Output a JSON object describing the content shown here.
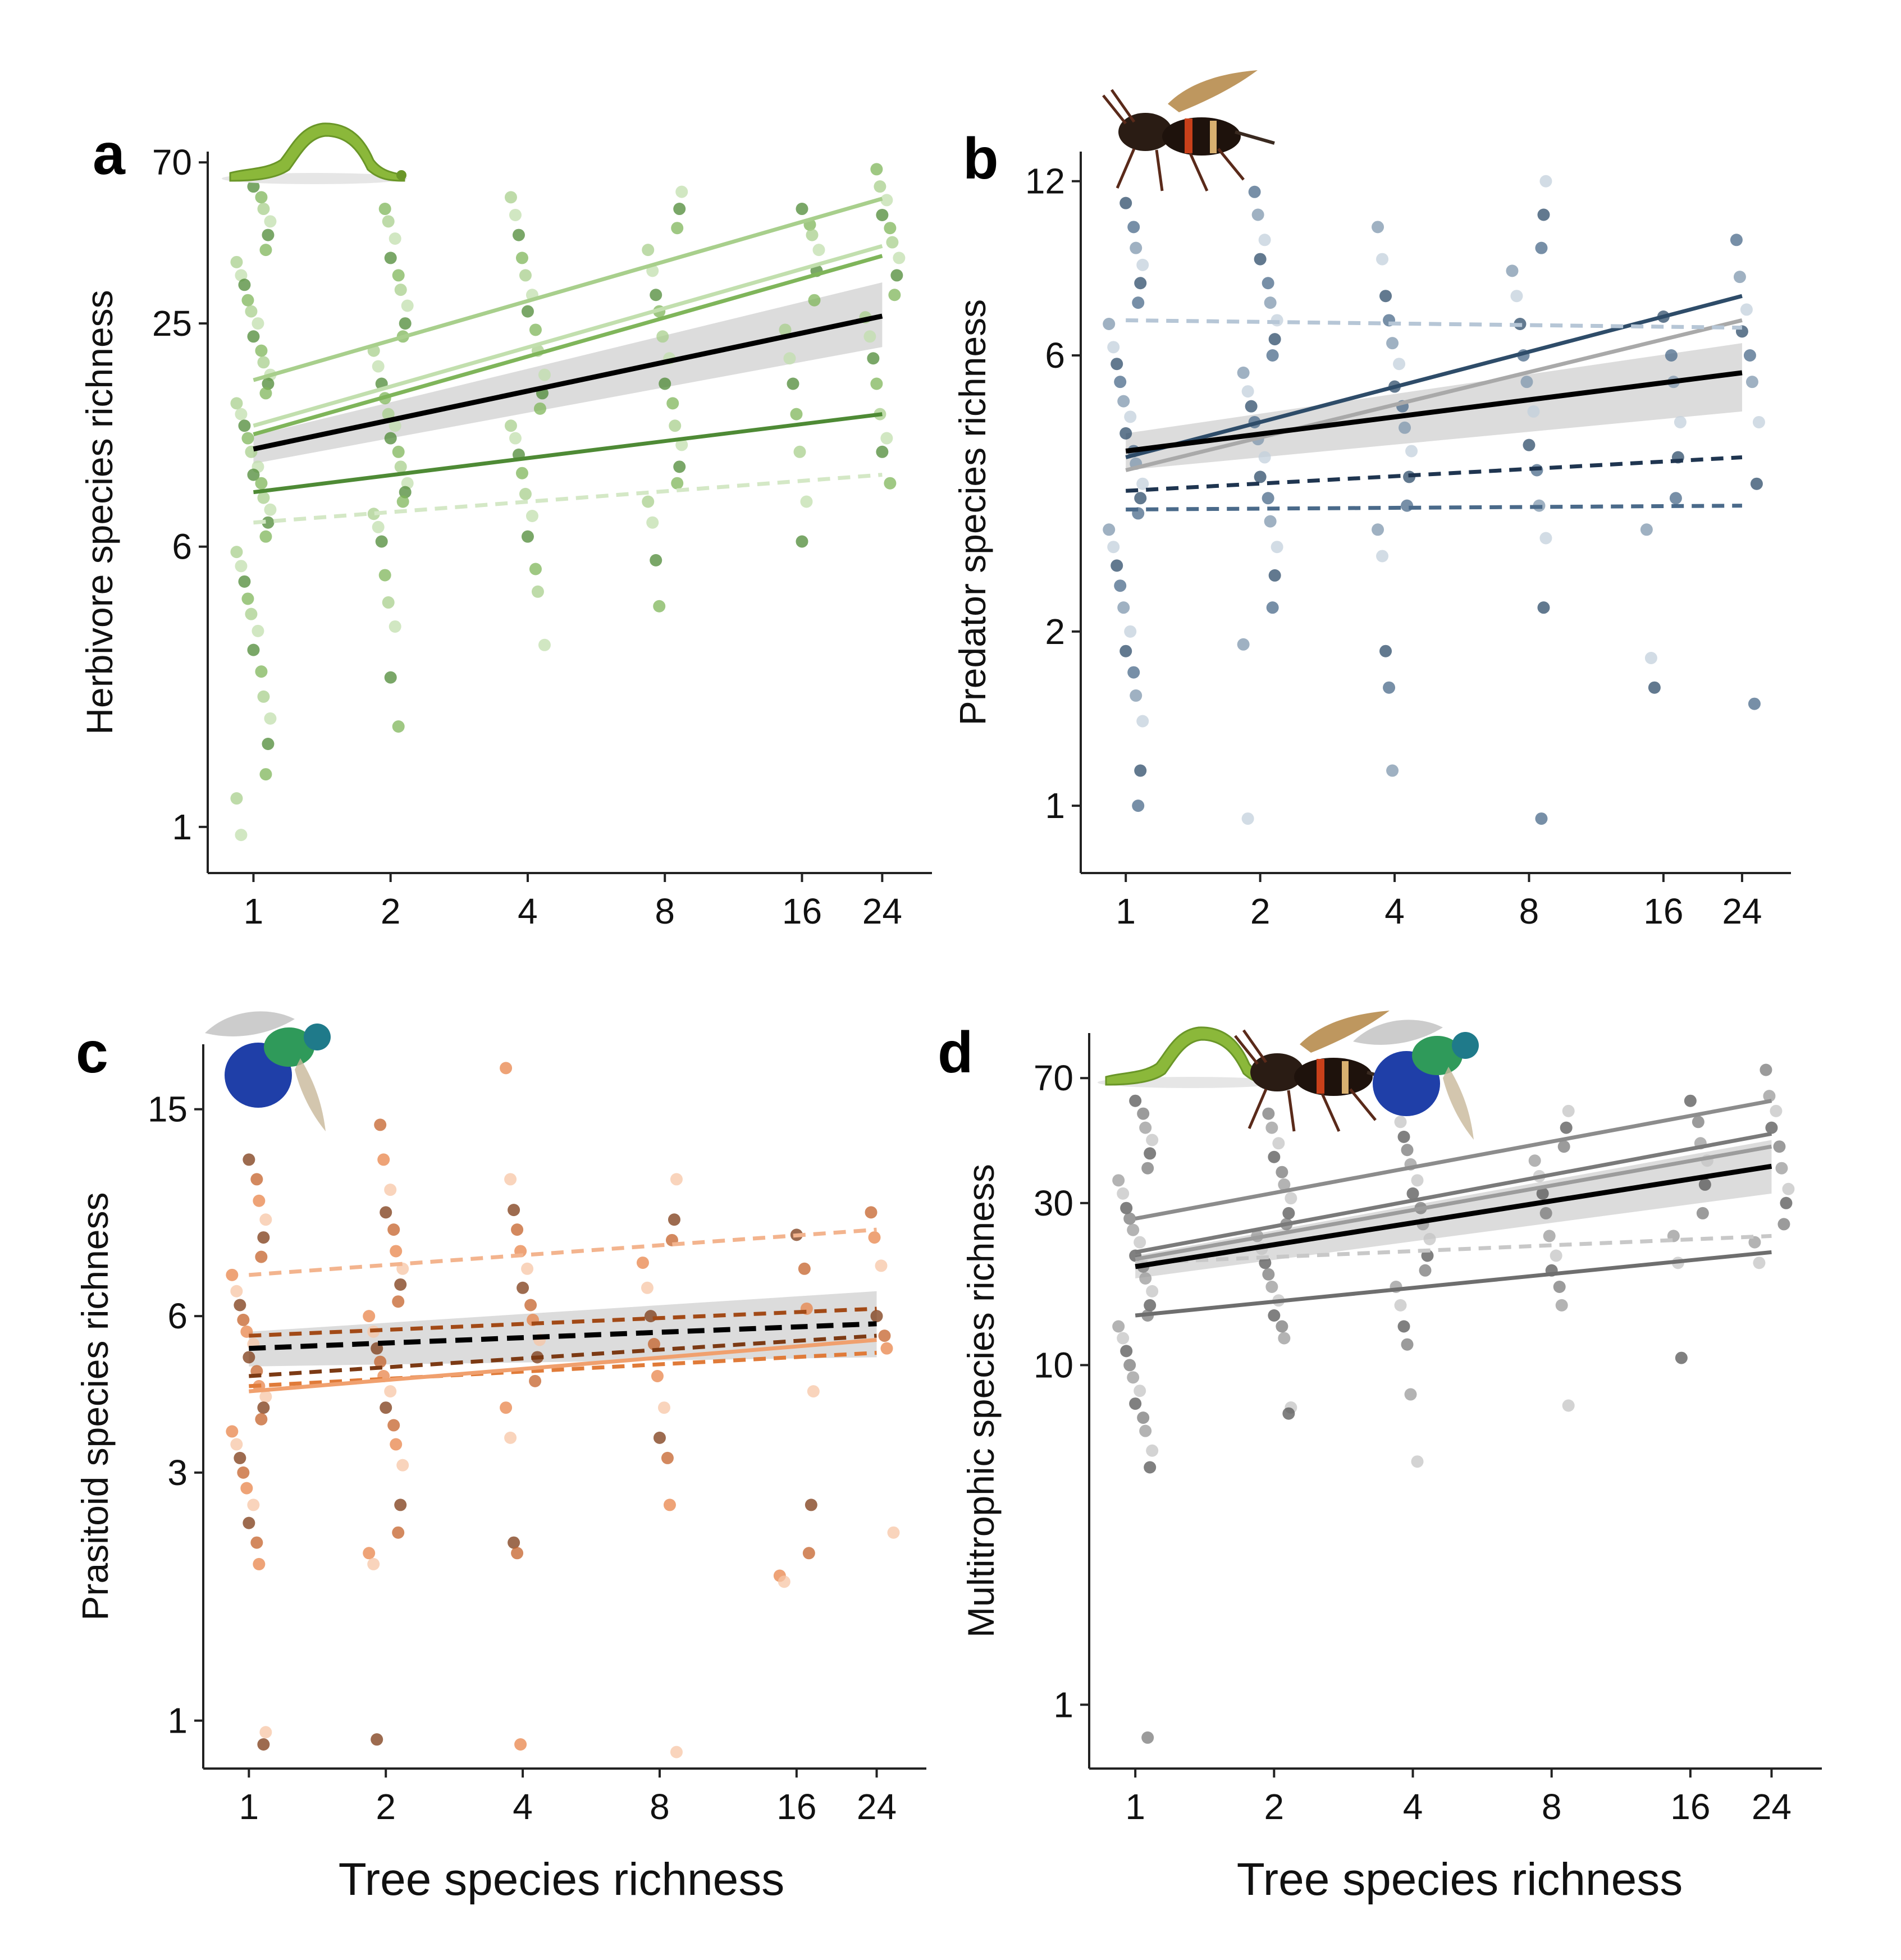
{
  "figure": {
    "xlabel": "Tree species richness"
  },
  "chart_data": [
    {
      "type": "scatter",
      "panel": "a",
      "ylabel": "Herbivore species richness",
      "x_ticks": [
        1,
        2,
        4,
        8,
        16,
        24
      ],
      "y_ticks": [
        1,
        6,
        25,
        70
      ],
      "x_scale": "log2",
      "y_scale": "log",
      "xlim": [
        0.84,
        30
      ],
      "ylim": [
        0.8,
        75
      ],
      "insect_icons": [
        "caterpillar-icon"
      ],
      "mean_line": {
        "color": "#000000",
        "style": "solid",
        "x": [
          1,
          24
        ],
        "y": [
          11.2,
          26.2
        ],
        "band_upper": [
          12.2,
          32.5
        ],
        "band_lower": [
          10.2,
          21.5
        ],
        "band_color": "#dcdcdc"
      },
      "series": [
        {
          "color": "#a8cf8c",
          "style": "solid",
          "x": [
            1,
            24
          ],
          "y": [
            17.4,
            55.5
          ]
        },
        {
          "color": "#c2dfae",
          "style": "solid",
          "x": [
            1,
            24
          ],
          "y": [
            13.0,
            41.0
          ]
        },
        {
          "color": "#7fb55a",
          "style": "solid",
          "x": [
            1,
            24
          ],
          "y": [
            12.3,
            38.5
          ]
        },
        {
          "color": "#4e8a35",
          "style": "solid",
          "x": [
            1,
            24
          ],
          "y": [
            8.5,
            14.0
          ]
        },
        {
          "color": "#d4e8c6",
          "style": "dashed",
          "x": [
            1,
            24
          ],
          "y": [
            7.0,
            9.5
          ]
        }
      ],
      "points": {
        "colors": [
          "#4e8a35",
          "#7fb55a",
          "#a8cf8c",
          "#c2dfae"
        ],
        "groups": [
          {
            "x": 1,
            "y": [
              60,
              56,
              52,
              48,
              44,
              40,
              37,
              34,
              32,
              29,
              27,
              25,
              23,
              21,
              19.5,
              18,
              17,
              16,
              15,
              14,
              13,
              12,
              11,
              10,
              9.5,
              9,
              8.2,
              7.6,
              7,
              6.4,
              5.8,
              5.3,
              4.8,
              4.3,
              3.9,
              3.5,
              3.1,
              2.7,
              2.3,
              2.0,
              1.7,
              1.4,
              1.2,
              0.95
            ]
          },
          {
            "x": 2,
            "y": [
              52,
              48,
              43,
              38,
              34,
              31,
              28,
              25,
              23,
              21,
              19,
              17,
              15.5,
              14,
              13,
              12,
              11,
              10,
              9,
              8.5,
              8,
              7.4,
              6.8,
              6.2,
              5.0,
              4.2,
              3.6,
              2.6,
              1.9
            ]
          },
          {
            "x": 4,
            "y": [
              56,
              50,
              44,
              38,
              34,
              30,
              27,
              24,
              21,
              18,
              16,
              14.5,
              13,
              12,
              10.8,
              9.6,
              8.4,
              7.3,
              6.4,
              5.2,
              4.5,
              3.2
            ]
          },
          {
            "x": 8,
            "y": [
              58,
              52,
              46,
              40,
              35,
              30,
              27,
              23,
              20,
              17,
              15,
              13,
              11.5,
              10,
              9,
              8,
              7,
              5.5,
              4.1
            ]
          },
          {
            "x": 16,
            "y": [
              52,
              47,
              44,
              40,
              35,
              29,
              24,
              20,
              17,
              14,
              11,
              8,
              6.2
            ]
          },
          {
            "x": 24,
            "y": [
              67,
              60,
              55,
              50,
              46,
              42,
              38,
              34,
              30,
              26,
              23,
              20,
              17,
              14,
              12,
              11,
              9
            ]
          }
        ]
      }
    },
    {
      "type": "scatter",
      "panel": "b",
      "ylabel": "Predator species richness",
      "x_ticks": [
        1,
        2,
        4,
        8,
        16,
        24
      ],
      "y_ticks": [
        1,
        2,
        6,
        12
      ],
      "x_scale": "log2",
      "y_scale": "log",
      "xlim": [
        0.84,
        30
      ],
      "ylim": [
        0.8,
        13.5
      ],
      "insect_icons": [
        "wasp-icon"
      ],
      "mean_line": {
        "color": "#000000",
        "style": "solid",
        "x": [
          1,
          24
        ],
        "y": [
          4.1,
          5.6
        ],
        "band_upper": [
          4.4,
          6.3
        ],
        "band_lower": [
          3.8,
          4.8
        ],
        "band_color": "#dcdcdc"
      },
      "series": [
        {
          "color": "#2e4c69",
          "style": "solid",
          "x": [
            1,
            24
          ],
          "y": [
            4.0,
            7.6
          ]
        },
        {
          "color": "#a9a9a9",
          "style": "solid",
          "x": [
            1,
            24
          ],
          "y": [
            3.8,
            6.9
          ]
        },
        {
          "color": "#b6c6d6",
          "style": "dashed",
          "x": [
            1,
            24
          ],
          "y": [
            6.9,
            6.7
          ]
        },
        {
          "color": "#1f3550",
          "style": "dashed",
          "x": [
            1,
            24
          ],
          "y": [
            3.5,
            4.0
          ]
        },
        {
          "color": "#4a6a8a",
          "style": "dashed",
          "x": [
            1,
            24
          ],
          "y": [
            3.25,
            3.3
          ]
        }
      ],
      "points": {
        "colors": [
          "#2e4c69",
          "#4a6a8a",
          "#7f97ae",
          "#c3d0dc"
        ],
        "groups": [
          {
            "x": 1,
            "y": [
              11,
              10,
              9.2,
              8.6,
              8,
              7.4,
              6.8,
              6.2,
              5.8,
              5.4,
              5.0,
              4.7,
              4.4,
              4.1,
              3.9,
              3.6,
              3.4,
              3.2,
              3.0,
              2.8,
              2.6,
              2.4,
              2.2,
              2.0,
              1.85,
              1.7,
              1.55,
              1.4,
              1.15,
              1.0
            ]
          },
          {
            "x": 2,
            "y": [
              11.5,
              10.5,
              9.5,
              8.8,
              8,
              7.4,
              6.9,
              6.4,
              6.0,
              5.6,
              5.2,
              4.9,
              4.6,
              4.3,
              4.0,
              3.7,
              3.4,
              3.1,
              2.8,
              2.5,
              2.2,
              1.9,
              0.95
            ]
          },
          {
            "x": 4,
            "y": [
              10,
              8.8,
              7.6,
              6.9,
              6.3,
              5.8,
              5.3,
              4.9,
              4.5,
              4.1,
              3.7,
              3.3,
              3.0,
              2.7,
              1.85,
              1.6,
              1.15
            ]
          },
          {
            "x": 8,
            "y": [
              12,
              10.5,
              9.2,
              8.4,
              7.6,
              6.8,
              6.0,
              5.4,
              4.8,
              4.2,
              3.8,
              3.3,
              2.9,
              2.2,
              0.95
            ]
          },
          {
            "x": 16,
            "y": [
              7,
              6.0,
              5.4,
              4.6,
              4.0,
              3.4,
              3.0,
              1.8,
              1.6
            ]
          },
          {
            "x": 24,
            "y": [
              9.5,
              8.2,
              7.2,
              6.6,
              6.0,
              5.4,
              4.6,
              3.6,
              1.5
            ]
          }
        ]
      }
    },
    {
      "type": "scatter",
      "panel": "c",
      "ylabel": "Prasitoid species richness",
      "x_ticks": [
        1,
        2,
        4,
        8,
        16,
        24
      ],
      "y_ticks": [
        1,
        3,
        6,
        15
      ],
      "x_scale": "log2",
      "y_scale": "log",
      "xlim": [
        0.84,
        30
      ],
      "ylim": [
        0.85,
        20
      ],
      "insect_icons": [
        "cuckoo-wasp-icon"
      ],
      "mean_line": {
        "color": "#000000",
        "style": "dashed",
        "x": [
          1,
          24
        ],
        "y": [
          5.2,
          5.8
        ],
        "band_upper": [
          5.6,
          6.7
        ],
        "band_lower": [
          4.8,
          5.0
        ],
        "band_color": "#dcdcdc"
      },
      "series": [
        {
          "color": "#f3b48e",
          "style": "dashed",
          "x": [
            1,
            24
          ],
          "y": [
            7.2,
            8.8
          ]
        },
        {
          "color": "#a24a17",
          "style": "dashed",
          "x": [
            1,
            24
          ],
          "y": [
            5.5,
            6.2
          ]
        },
        {
          "color": "#7c3a14",
          "style": "dashed",
          "x": [
            1,
            24
          ],
          "y": [
            4.6,
            5.5
          ]
        },
        {
          "color": "#e07b39",
          "style": "dashed",
          "x": [
            1,
            24
          ],
          "y": [
            4.4,
            5.1
          ]
        },
        {
          "color": "#f0a06e",
          "style": "solid",
          "x": [
            1,
            24
          ],
          "y": [
            4.3,
            5.4
          ]
        }
      ],
      "points": {
        "colors": [
          "#7c3a14",
          "#c4612a",
          "#e8844a",
          "#f7c6a5"
        ],
        "groups": [
          {
            "x": 1,
            "y": [
              12,
              11,
              10,
              9.2,
              8.5,
              7.8,
              7.2,
              6.7,
              6.3,
              5.9,
              5.6,
              5.3,
              5.0,
              4.7,
              4.4,
              4.2,
              4.0,
              3.8,
              3.6,
              3.4,
              3.2,
              3.0,
              2.8,
              2.6,
              2.4,
              2.2,
              2.0,
              0.95,
              0.9
            ]
          },
          {
            "x": 2,
            "y": [
              14,
              12,
              10.5,
              9.5,
              8.8,
              8.0,
              7.4,
              6.9,
              6.4,
              6.0,
              5.6,
              5.2,
              4.9,
              4.6,
              4.3,
              4.0,
              3.7,
              3.4,
              3.1,
              2.6,
              2.3,
              2.1,
              2.0,
              0.92
            ]
          },
          {
            "x": 4,
            "y": [
              18,
              11,
              9.6,
              8.8,
              8.0,
              7.4,
              6.8,
              6.3,
              5.9,
              5.4,
              5.0,
              4.5,
              4.0,
              3.5,
              2.2,
              2.1,
              0.9
            ]
          },
          {
            "x": 8,
            "y": [
              11,
              9.2,
              8.4,
              7.6,
              6.8,
              6.0,
              5.3,
              4.6,
              4.0,
              3.5,
              3.2,
              2.6,
              0.87
            ]
          },
          {
            "x": 16,
            "y": [
              8.6,
              7.4,
              6.2,
              4.3,
              2.6,
              2.1,
              1.9,
              1.85
            ]
          },
          {
            "x": 24,
            "y": [
              9.5,
              8.5,
              7.5,
              6.0,
              5.5,
              5.2,
              2.3
            ]
          }
        ]
      }
    },
    {
      "type": "scatter",
      "panel": "d",
      "ylabel": "Multitrophic species richness",
      "x_ticks": [
        1,
        2,
        4,
        8,
        16,
        24
      ],
      "y_ticks": [
        1,
        10,
        30,
        70
      ],
      "x_scale": "log2",
      "y_scale": "log",
      "xlim": [
        0.84,
        30
      ],
      "ylim": [
        0.7,
        95
      ],
      "insect_icons": [
        "caterpillar-icon",
        "wasp-icon",
        "cuckoo-wasp-icon"
      ],
      "mean_line": {
        "color": "#000000",
        "style": "solid",
        "x": [
          1,
          24
        ],
        "y": [
          19.5,
          38.5
        ],
        "band_upper": [
          21,
          46
        ],
        "band_lower": [
          18,
          32
        ],
        "band_color": "#dcdcdc"
      },
      "series": [
        {
          "color": "#8c8c8c",
          "style": "solid",
          "x": [
            1,
            24
          ],
          "y": [
            27,
            60
          ]
        },
        {
          "color": "#7a7a7a",
          "style": "solid",
          "x": [
            1,
            24
          ],
          "y": [
            21.5,
            48
          ]
        },
        {
          "color": "#9c9c9c",
          "style": "solid",
          "x": [
            1,
            24
          ],
          "y": [
            20.5,
            44
          ]
        },
        {
          "color": "#6e6e6e",
          "style": "solid",
          "x": [
            1,
            24
          ],
          "y": [
            14,
            21.5
          ]
        },
        {
          "color": "#c8c8c8",
          "style": "dashed",
          "x": [
            1,
            24
          ],
          "y": [
            20,
            24
          ]
        }
      ],
      "points": {
        "colors": [
          "#555555",
          "#7a7a7a",
          "#9a9a9a",
          "#c4c4c4"
        ],
        "groups": [
          {
            "x": 1,
            "y": [
              60,
              55,
              50,
              46,
              42,
              38,
              35,
              32,
              29,
              27,
              25,
              23,
              21,
              19.5,
              18,
              16.5,
              15,
              14,
              13,
              12,
              11,
              10,
              9.2,
              8.4,
              7.7,
              7.0,
              6.4,
              5.6,
              5.0,
              0.8
            ]
          },
          {
            "x": 2,
            "y": [
              55,
              50,
              45,
              41,
              37,
              34,
              31,
              28,
              26,
              24,
              22,
              20,
              18.5,
              17,
              15.5,
              14,
              13,
              12,
              7.5,
              7.2
            ]
          },
          {
            "x": 4,
            "y": [
              58,
              52,
              47,
              43,
              39,
              35,
              32,
              29,
              26,
              23.5,
              21,
              19,
              17,
              15,
              13,
              11.5,
              8.2,
              5.2
            ]
          },
          {
            "x": 8,
            "y": [
              56,
              50,
              44,
              40,
              36,
              32,
              28,
              24,
              21,
              19,
              17,
              15,
              7.6
            ]
          },
          {
            "x": 16,
            "y": [
              60,
              52,
              45,
              40,
              34,
              28,
              24,
              20,
              10.5
            ]
          },
          {
            "x": 24,
            "y": [
              74,
              62,
              56,
              50,
              44,
              38,
              33,
              30,
              26,
              23,
              20
            ]
          }
        ]
      }
    }
  ]
}
